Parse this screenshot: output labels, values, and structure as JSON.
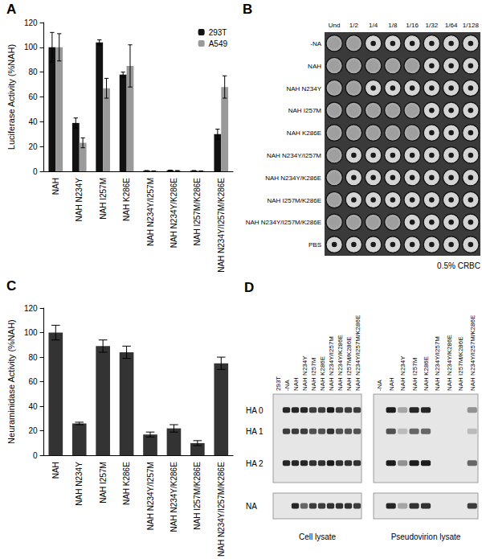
{
  "panel_labels": [
    "A",
    "B",
    "C",
    "D"
  ],
  "chart_data": [
    {
      "type": "bar",
      "ylabel": "Luciferase Activity (%NAH)",
      "categories": [
        "NAH",
        "NAH N234Y",
        "NAH I257M",
        "NAH K286E",
        "NAH N234Y/I257M",
        "NAH N234Y/K286E",
        "NAH I257M/K286E",
        "NAH N234Y/I257M/K286E"
      ],
      "series": [
        {
          "name": "293T",
          "color": "#111111",
          "values": [
            100,
            39,
            104,
            78,
            0.5,
            0.8,
            0.5,
            30
          ],
          "errors": [
            12,
            4,
            2,
            2,
            0,
            0,
            0,
            4
          ]
        },
        {
          "name": "A549",
          "color": "#9a9a9a",
          "values": [
            100,
            23,
            67,
            85,
            0.3,
            0.5,
            0.3,
            68
          ],
          "errors": [
            11,
            4,
            8,
            17,
            0,
            0,
            0,
            9
          ]
        }
      ],
      "ylim": [
        0,
        120
      ],
      "yticks": [
        0,
        20,
        40,
        60,
        80,
        100,
        120
      ],
      "grid": false,
      "legend": "top-right"
    },
    {
      "type": "bar",
      "ylabel": "Neuraminidase Activity (%NAH)",
      "categories": [
        "NAH",
        "NAH N234Y",
        "NAH I257M",
        "NAH K286E",
        "NAH N234Y/I257M",
        "NAH N234Y/K286E",
        "NAH I257M/K286E",
        "NAH N234Y/I257M/K286E"
      ],
      "values": [
        100,
        26,
        89,
        84,
        17,
        22,
        10,
        75
      ],
      "errors": [
        6,
        1,
        5,
        5,
        2,
        3,
        2,
        5
      ],
      "color": "#333333",
      "ylim": [
        0,
        120
      ],
      "yticks": [
        0,
        20,
        40,
        60,
        80,
        100,
        120
      ],
      "grid": false
    }
  ],
  "hemagglutination": {
    "columns": [
      "Und",
      "1/2",
      "1/4",
      "1/8",
      "1/16",
      "1/32",
      "1/64",
      "1/128"
    ],
    "rows": [
      "-NA",
      "NAH",
      "NAH N234Y",
      "NAH I257M",
      "NAH K286E",
      "NAH N234Y/I257M",
      "NAH N234Y/K286E",
      "NAH I257M/K286E",
      "NAH N234Y/I257M/K286E",
      "PBS"
    ],
    "agglutination": [
      [
        true,
        true,
        false,
        false,
        false,
        false,
        false,
        false
      ],
      [
        true,
        true,
        true,
        true,
        true,
        false,
        false,
        false
      ],
      [
        true,
        true,
        false,
        false,
        false,
        false,
        false,
        false
      ],
      [
        true,
        true,
        true,
        true,
        true,
        false,
        false,
        false
      ],
      [
        true,
        true,
        true,
        true,
        true,
        false,
        false,
        false
      ],
      [
        true,
        false,
        false,
        false,
        false,
        false,
        false,
        false
      ],
      [
        true,
        false,
        false,
        false,
        false,
        false,
        false,
        false
      ],
      [
        true,
        false,
        false,
        false,
        false,
        false,
        false,
        false
      ],
      [
        true,
        true,
        true,
        true,
        false,
        false,
        false,
        false
      ],
      [
        false,
        false,
        false,
        false,
        false,
        false,
        false,
        false
      ]
    ],
    "footer": "0.5% CRBC"
  },
  "western_blot": {
    "band_labels": [
      "HA 0",
      "HA 1",
      "HA 2",
      "NA"
    ],
    "blots": [
      {
        "title": "Cell lysate",
        "lanes": [
          "293T",
          "-NA",
          "NAH",
          "NAH N234Y",
          "NAH I257M",
          "NAH K286E",
          "NAH N234Y/I257M",
          "NAH N234Y/K286E",
          "NAH I257M/K286E",
          "NAH N234Y/I257M/K286E"
        ],
        "intensities": [
          [
            0,
            0.9,
            0.9,
            0.9,
            0.8,
            0.8,
            0.95,
            0.8,
            0.8,
            0.8
          ],
          [
            0,
            0.8,
            0.8,
            0.8,
            0.7,
            0.7,
            0.85,
            0.7,
            0.7,
            0.7
          ],
          [
            0,
            0.9,
            0.9,
            0.9,
            0.85,
            0.85,
            0.95,
            0.85,
            0.85,
            0.85
          ],
          [
            0,
            0,
            0.9,
            0.6,
            0.8,
            0.8,
            0.85,
            0.85,
            0.85,
            0.8
          ]
        ]
      },
      {
        "title": "Pseudovirion lysate",
        "lanes": [
          "-NA",
          "NAH",
          "NAH N234Y",
          "NAH I257M",
          "NAH K286E",
          "NAH N234Y/I257M",
          "NAH N234Y/K286E",
          "NAH I257M/K286E",
          "NAH N234Y/I257M/K286E"
        ],
        "intensities": [
          [
            0,
            0.95,
            0.3,
            0.9,
            0.9,
            0,
            0,
            0,
            0.4
          ],
          [
            0,
            0.7,
            0.2,
            0.6,
            0.6,
            0,
            0,
            0,
            0.2
          ],
          [
            0,
            0.95,
            0.4,
            0.95,
            0.95,
            0,
            0,
            0,
            0.6
          ],
          [
            0,
            0.9,
            0.3,
            0.85,
            0.85,
            0,
            0,
            0,
            0.8
          ]
        ]
      }
    ]
  }
}
